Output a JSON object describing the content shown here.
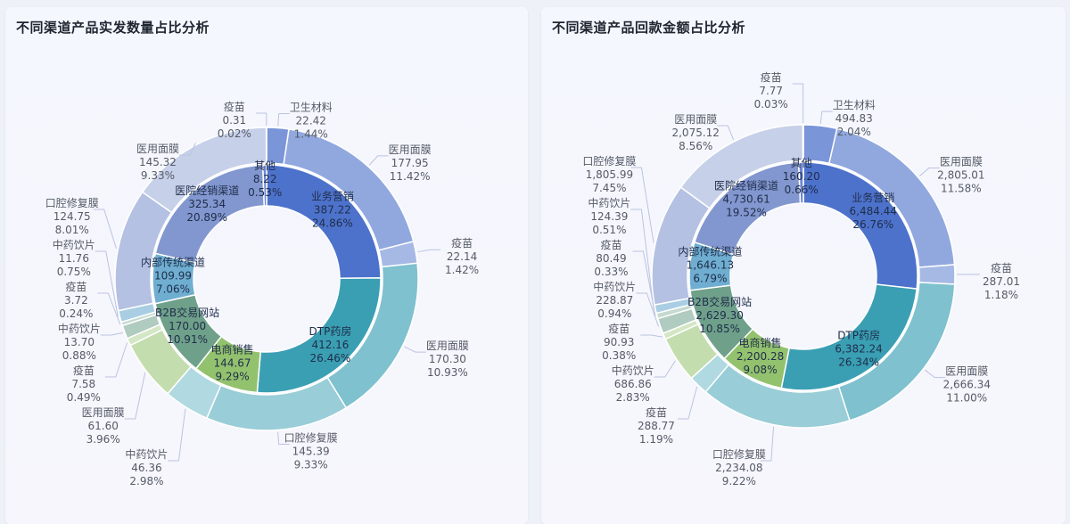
{
  "panels": [
    {
      "title": "不同渠道产品实发数量占比分析",
      "chart_data": {
        "type": "pie",
        "variant": "nested-donut",
        "inner": [
          {
            "name": "业务营销",
            "value": "387.22",
            "pct": "24.86%",
            "color": "#4d72cb"
          },
          {
            "name": "DTP药房",
            "value": "412.16",
            "pct": "26.46%",
            "color": "#3a9fb3"
          },
          {
            "name": "电商销售",
            "value": "144.67",
            "pct": "9.29%",
            "color": "#93c26e"
          },
          {
            "name": "B2B交易网站",
            "value": "170.00",
            "pct": "10.91%",
            "color": "#6fa08a"
          },
          {
            "name": "内部传统渠道",
            "value": "109.99",
            "pct": "7.06%",
            "color": "#6faed1"
          },
          {
            "name": "医院经销渠道",
            "value": "325.34",
            "pct": "20.89%",
            "color": "#8297cf"
          },
          {
            "name": "其他",
            "value": "8.22",
            "pct": "0.53%",
            "color": "#6f86d4"
          }
        ],
        "outer": [
          {
            "name": "卫生材料",
            "value": "22.42",
            "pct": "1.44%"
          },
          {
            "name": "医用面膜",
            "value": "177.95",
            "pct": "11.42%"
          },
          {
            "name": "疫苗",
            "value": "22.14",
            "pct": "1.42%"
          },
          {
            "name": "医用面膜",
            "value": "170.30",
            "pct": "10.93%"
          },
          {
            "name": "口腔修复膜",
            "value": "145.39",
            "pct": "9.33%"
          },
          {
            "name": "中药饮片",
            "value": "46.36",
            "pct": "2.98%"
          },
          {
            "name": "医用面膜",
            "value": "61.60",
            "pct": "3.96%"
          },
          {
            "name": "疫苗",
            "value": "7.58",
            "pct": "0.49%"
          },
          {
            "name": "中药饮片",
            "value": "13.70",
            "pct": "0.88%"
          },
          {
            "name": "疫苗",
            "value": "3.72",
            "pct": "0.24%"
          },
          {
            "name": "中药饮片",
            "value": "11.76",
            "pct": "0.75%"
          },
          {
            "name": "口腔修复膜",
            "value": "124.75",
            "pct": "8.01%"
          },
          {
            "name": "医用面膜",
            "value": "145.32",
            "pct": "9.33%"
          },
          {
            "name": "疫苗",
            "value": "0.31",
            "pct": "0.02%"
          }
        ]
      }
    },
    {
      "title": "不同渠道产品回款金额占比分析",
      "chart_data": {
        "type": "pie",
        "variant": "nested-donut",
        "inner": [
          {
            "name": "业务营销",
            "value": "6,484.44",
            "pct": "26.76%",
            "color": "#4d72cb"
          },
          {
            "name": "DTP药房",
            "value": "6,382.24",
            "pct": "26.34%",
            "color": "#3a9fb3"
          },
          {
            "name": "电商销售",
            "value": "2,200.28",
            "pct": "9.08%",
            "color": "#93c26e"
          },
          {
            "name": "B2B交易网站",
            "value": "2,629.30",
            "pct": "10.85%",
            "color": "#6fa08a"
          },
          {
            "name": "内部传统渠道",
            "value": "1,646.13",
            "pct": "6.79%",
            "color": "#6faed1"
          },
          {
            "name": "医院经销渠道",
            "value": "4,730.61",
            "pct": "19.52%",
            "color": "#8297cf"
          },
          {
            "name": "其他",
            "value": "160.20",
            "pct": "0.66%",
            "color": "#6f86d4"
          }
        ],
        "outer": [
          {
            "name": "卫生材料",
            "value": "494.83",
            "pct": "2.04%"
          },
          {
            "name": "医用面膜",
            "value": "2,805.01",
            "pct": "11.58%"
          },
          {
            "name": "疫苗",
            "value": "287.01",
            "pct": "1.18%"
          },
          {
            "name": "医用面膜",
            "value": "2,666.34",
            "pct": "11.00%"
          },
          {
            "name": "口腔修复膜",
            "value": "2,234.08",
            "pct": "9.22%"
          },
          {
            "name": "疫苗",
            "value": "288.77",
            "pct": "1.19%"
          },
          {
            "name": "中药饮片",
            "value": "686.86",
            "pct": "2.83%"
          },
          {
            "name": "疫苗",
            "value": "90.93",
            "pct": "0.38%"
          },
          {
            "name": "中药饮片",
            "value": "228.87",
            "pct": "0.94%"
          },
          {
            "name": "疫苗",
            "value": "80.49",
            "pct": "0.33%"
          },
          {
            "name": "中药饮片",
            "value": "124.39",
            "pct": "0.51%"
          },
          {
            "name": "口腔修复膜",
            "value": "1,805.99",
            "pct": "7.45%"
          },
          {
            "name": "医用面膜",
            "value": "2,075.12",
            "pct": "8.56%"
          },
          {
            "name": "疫苗",
            "value": "7.77",
            "pct": "0.03%"
          }
        ]
      }
    }
  ]
}
